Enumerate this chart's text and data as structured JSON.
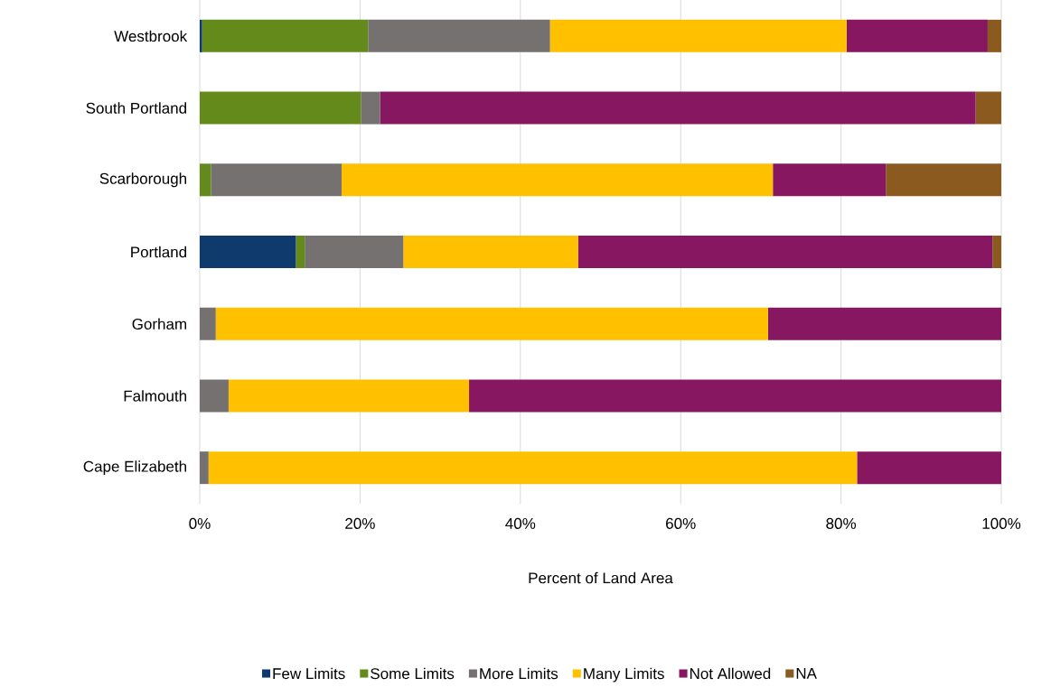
{
  "chart_data": {
    "type": "bar",
    "orientation": "horizontal",
    "stacked": true,
    "categories": [
      "Westbrook",
      "South Portland",
      "Scarborough",
      "Portland",
      "Gorham",
      "Falmouth",
      "Cape Elizabeth"
    ],
    "series": [
      {
        "name": "Few Limits",
        "color": "#0e3a6e",
        "values": [
          0.3,
          null,
          null,
          12.0,
          null,
          null,
          null
        ]
      },
      {
        "name": "Some Limits",
        "color": "#638a1a",
        "values": [
          20.7,
          20.1,
          1.4,
          1.1,
          null,
          null,
          null
        ]
      },
      {
        "name": "More Limits",
        "color": "#767171",
        "values": [
          22.7,
          2.4,
          16.3,
          12.3,
          2.0,
          3.6,
          1.1
        ]
      },
      {
        "name": "Many Limits",
        "color": "#ffc000",
        "values": [
          37.0,
          null,
          53.8,
          21.8,
          68.9,
          30.0,
          80.9
        ]
      },
      {
        "name": "Not Allowed",
        "color": "#871760",
        "values": [
          17.6,
          74.3,
          14.1,
          51.7,
          29.1,
          66.4,
          18.0
        ]
      },
      {
        "name": "NA",
        "color": "#8b5a1e",
        "values": [
          1.7,
          3.2,
          14.4,
          1.1,
          null,
          null,
          null
        ]
      }
    ],
    "xlabel": "Percent of Land Area",
    "xlim": [
      0,
      100
    ],
    "xticks": [
      {
        "value": 0,
        "label": "0%"
      },
      {
        "value": 20,
        "label": "20%"
      },
      {
        "value": 40,
        "label": "40%"
      },
      {
        "value": 60,
        "label": "60%"
      },
      {
        "value": 80,
        "label": "80%"
      },
      {
        "value": 100,
        "label": "100%"
      }
    ],
    "grid": "x",
    "legend": "bottom"
  }
}
